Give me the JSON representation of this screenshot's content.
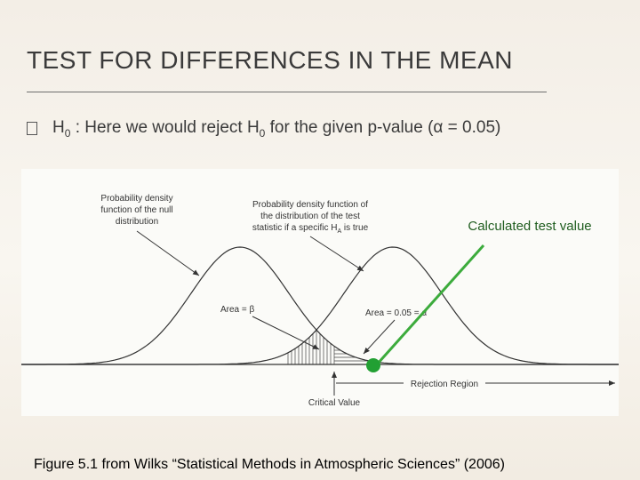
{
  "header": {
    "title": "TEST FOR DIFFERENCES IN THE MEAN"
  },
  "bullet": {
    "parts": [
      "H",
      "0",
      " : Here we would reject H",
      "0",
      " for the given p-value (α = 0.05)"
    ]
  },
  "figure": {
    "null_label": [
      "Probability density",
      "function of the null",
      "distribution"
    ],
    "alt_label": [
      "Probability density function of",
      "the distribution of the test",
      "statistic if a specific H",
      "A",
      " is true"
    ],
    "area_beta": "Area = β",
    "area_alpha": "Area = 0.05 = α",
    "rejection_region": "Rejection Region",
    "critical_value": "Critical Value",
    "calculated_label": "Calculated test value"
  },
  "caption": "Figure 5.1 from Wilks “Statistical Methods in Atmospheric Sciences” (2006)"
}
